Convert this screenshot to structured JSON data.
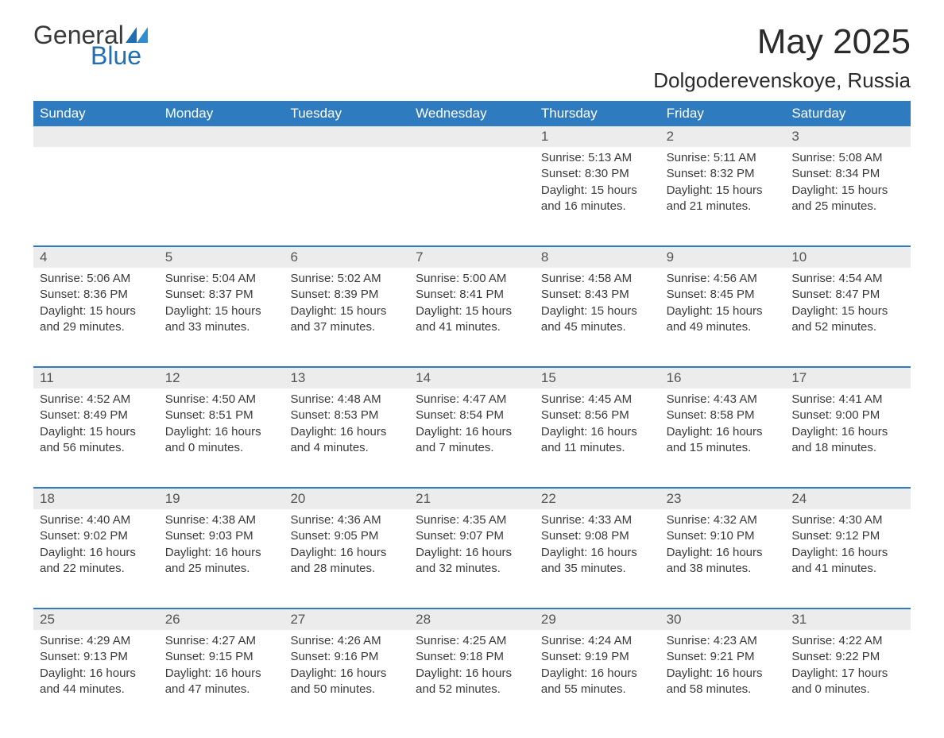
{
  "brand": {
    "word1": "General",
    "word2": "Blue",
    "accent_color": "#1f6fb2"
  },
  "title": "May 2025",
  "location": "Dolgoderevenskoye, Russia",
  "header_bg": "#2f7bbf",
  "daynum_bg": "#ececec",
  "day_headers": [
    "Sunday",
    "Monday",
    "Tuesday",
    "Wednesday",
    "Thursday",
    "Friday",
    "Saturday"
  ],
  "labels": {
    "sunrise": "Sunrise:",
    "sunset": "Sunset:",
    "daylight_prefix": "Daylight:"
  },
  "weeks": [
    [
      null,
      null,
      null,
      null,
      {
        "d": "1",
        "sunrise": "5:13 AM",
        "sunset": "8:30 PM",
        "daylight": "15 hours and 16 minutes."
      },
      {
        "d": "2",
        "sunrise": "5:11 AM",
        "sunset": "8:32 PM",
        "daylight": "15 hours and 21 minutes."
      },
      {
        "d": "3",
        "sunrise": "5:08 AM",
        "sunset": "8:34 PM",
        "daylight": "15 hours and 25 minutes."
      }
    ],
    [
      {
        "d": "4",
        "sunrise": "5:06 AM",
        "sunset": "8:36 PM",
        "daylight": "15 hours and 29 minutes."
      },
      {
        "d": "5",
        "sunrise": "5:04 AM",
        "sunset": "8:37 PM",
        "daylight": "15 hours and 33 minutes."
      },
      {
        "d": "6",
        "sunrise": "5:02 AM",
        "sunset": "8:39 PM",
        "daylight": "15 hours and 37 minutes."
      },
      {
        "d": "7",
        "sunrise": "5:00 AM",
        "sunset": "8:41 PM",
        "daylight": "15 hours and 41 minutes."
      },
      {
        "d": "8",
        "sunrise": "4:58 AM",
        "sunset": "8:43 PM",
        "daylight": "15 hours and 45 minutes."
      },
      {
        "d": "9",
        "sunrise": "4:56 AM",
        "sunset": "8:45 PM",
        "daylight": "15 hours and 49 minutes."
      },
      {
        "d": "10",
        "sunrise": "4:54 AM",
        "sunset": "8:47 PM",
        "daylight": "15 hours and 52 minutes."
      }
    ],
    [
      {
        "d": "11",
        "sunrise": "4:52 AM",
        "sunset": "8:49 PM",
        "daylight": "15 hours and 56 minutes."
      },
      {
        "d": "12",
        "sunrise": "4:50 AM",
        "sunset": "8:51 PM",
        "daylight": "16 hours and 0 minutes."
      },
      {
        "d": "13",
        "sunrise": "4:48 AM",
        "sunset": "8:53 PM",
        "daylight": "16 hours and 4 minutes."
      },
      {
        "d": "14",
        "sunrise": "4:47 AM",
        "sunset": "8:54 PM",
        "daylight": "16 hours and 7 minutes."
      },
      {
        "d": "15",
        "sunrise": "4:45 AM",
        "sunset": "8:56 PM",
        "daylight": "16 hours and 11 minutes."
      },
      {
        "d": "16",
        "sunrise": "4:43 AM",
        "sunset": "8:58 PM",
        "daylight": "16 hours and 15 minutes."
      },
      {
        "d": "17",
        "sunrise": "4:41 AM",
        "sunset": "9:00 PM",
        "daylight": "16 hours and 18 minutes."
      }
    ],
    [
      {
        "d": "18",
        "sunrise": "4:40 AM",
        "sunset": "9:02 PM",
        "daylight": "16 hours and 22 minutes."
      },
      {
        "d": "19",
        "sunrise": "4:38 AM",
        "sunset": "9:03 PM",
        "daylight": "16 hours and 25 minutes."
      },
      {
        "d": "20",
        "sunrise": "4:36 AM",
        "sunset": "9:05 PM",
        "daylight": "16 hours and 28 minutes."
      },
      {
        "d": "21",
        "sunrise": "4:35 AM",
        "sunset": "9:07 PM",
        "daylight": "16 hours and 32 minutes."
      },
      {
        "d": "22",
        "sunrise": "4:33 AM",
        "sunset": "9:08 PM",
        "daylight": "16 hours and 35 minutes."
      },
      {
        "d": "23",
        "sunrise": "4:32 AM",
        "sunset": "9:10 PM",
        "daylight": "16 hours and 38 minutes."
      },
      {
        "d": "24",
        "sunrise": "4:30 AM",
        "sunset": "9:12 PM",
        "daylight": "16 hours and 41 minutes."
      }
    ],
    [
      {
        "d": "25",
        "sunrise": "4:29 AM",
        "sunset": "9:13 PM",
        "daylight": "16 hours and 44 minutes."
      },
      {
        "d": "26",
        "sunrise": "4:27 AM",
        "sunset": "9:15 PM",
        "daylight": "16 hours and 47 minutes."
      },
      {
        "d": "27",
        "sunrise": "4:26 AM",
        "sunset": "9:16 PM",
        "daylight": "16 hours and 50 minutes."
      },
      {
        "d": "28",
        "sunrise": "4:25 AM",
        "sunset": "9:18 PM",
        "daylight": "16 hours and 52 minutes."
      },
      {
        "d": "29",
        "sunrise": "4:24 AM",
        "sunset": "9:19 PM",
        "daylight": "16 hours and 55 minutes."
      },
      {
        "d": "30",
        "sunrise": "4:23 AM",
        "sunset": "9:21 PM",
        "daylight": "16 hours and 58 minutes."
      },
      {
        "d": "31",
        "sunrise": "4:22 AM",
        "sunset": "9:22 PM",
        "daylight": "17 hours and 0 minutes."
      }
    ]
  ]
}
